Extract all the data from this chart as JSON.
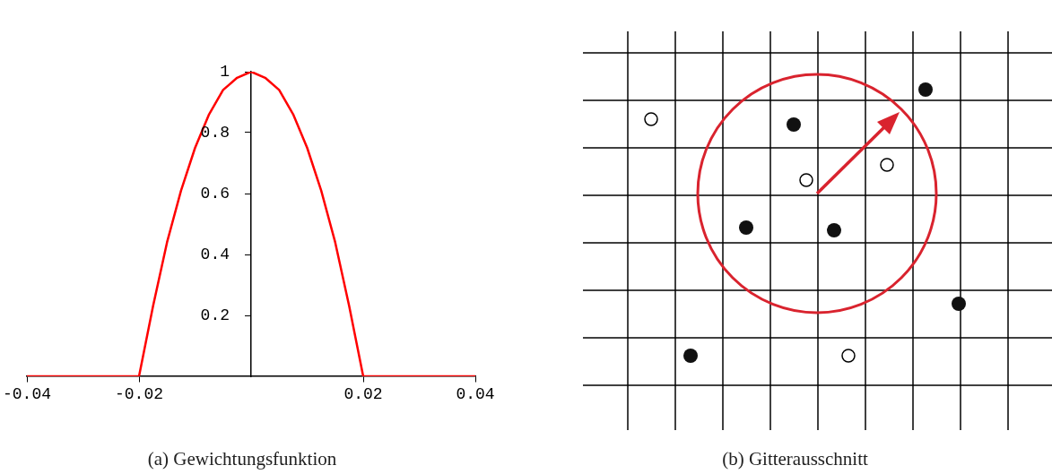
{
  "chart_data": [
    {
      "type": "line",
      "title": "(a) Gewichtungsfunktion",
      "marker": "none",
      "grid": false,
      "xlim": [
        -0.04,
        0.04
      ],
      "ylim": [
        0,
        1
      ],
      "xticks": [
        -0.04,
        -0.02,
        0.02,
        0.04
      ],
      "yticks": [
        0.2,
        0.4,
        0.6,
        0.8,
        1
      ],
      "x": [
        -0.04,
        -0.02,
        -0.0175,
        -0.015,
        -0.0125,
        -0.01,
        -0.0075,
        -0.005,
        -0.0025,
        0,
        0.0025,
        0.005,
        0.0075,
        0.01,
        0.0125,
        0.015,
        0.0175,
        0.02,
        0.04
      ],
      "series": [
        {
          "color": "#ff0000",
          "values": [
            0,
            0,
            0.23,
            0.44,
            0.61,
            0.75,
            0.86,
            0.94,
            0.98,
            1,
            0.98,
            0.94,
            0.86,
            0.75,
            0.61,
            0.44,
            0.23,
            0,
            0
          ]
        }
      ]
    },
    {
      "type": "other",
      "title": "(b) Gitterausschnitt"
    }
  ]
}
